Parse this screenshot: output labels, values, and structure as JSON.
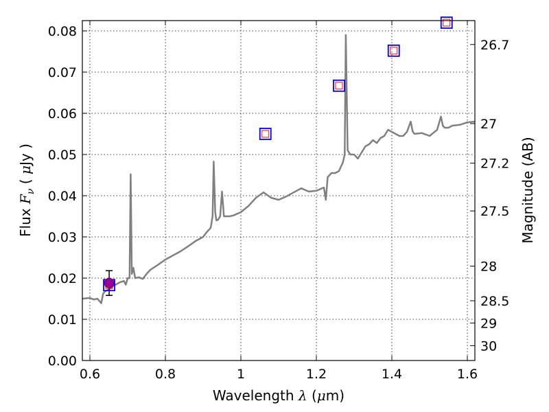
{
  "chart_data": {
    "type": "line",
    "xlabel": {
      "prefix": "Wavelength",
      "symbol": "λ",
      "unit_open": " (",
      "unit_mu": "μ",
      "unit_rest": "m)"
    },
    "ylabel": {
      "prefix": "Flux",
      "symbol": "F",
      "subscript": "ν",
      "unit_open": " ( ",
      "unit_mu": "μ",
      "unit_rest": "Jy )"
    },
    "ylabel_right": "Magnitude (AB)",
    "xlim": [
      0.58,
      1.62
    ],
    "ylim": [
      0.0,
      0.0825
    ],
    "grid": true,
    "x_ticks": [
      {
        "value": 0.6,
        "label": "0.6"
      },
      {
        "value": 0.8,
        "label": "0.8"
      },
      {
        "value": 1.0,
        "label": "1"
      },
      {
        "value": 1.2,
        "label": "1.2"
      },
      {
        "value": 1.4,
        "label": "1.4"
      },
      {
        "value": 1.6,
        "label": "1.6"
      }
    ],
    "y_ticks": [
      {
        "value": 0.0,
        "label": "0.00"
      },
      {
        "value": 0.01,
        "label": "0.01"
      },
      {
        "value": 0.02,
        "label": "0.02"
      },
      {
        "value": 0.03,
        "label": "0.03"
      },
      {
        "value": 0.04,
        "label": "0.04"
      },
      {
        "value": 0.05,
        "label": "0.05"
      },
      {
        "value": 0.06,
        "label": "0.06"
      },
      {
        "value": 0.07,
        "label": "0.07"
      },
      {
        "value": 0.08,
        "label": "0.08"
      }
    ],
    "right_ticks": [
      {
        "flux": 0.0767,
        "label": "26.7"
      },
      {
        "flux": 0.0575,
        "label": "27"
      },
      {
        "flux": 0.0479,
        "label": "27.2"
      },
      {
        "flux": 0.0363,
        "label": "27.5"
      },
      {
        "flux": 0.0229,
        "label": "28"
      },
      {
        "flux": 0.0145,
        "label": "28.5"
      },
      {
        "flux": 0.0091,
        "label": "29"
      },
      {
        "flux": 0.0036,
        "label": "30"
      }
    ],
    "colors": {
      "spectrum": "#808080",
      "model_square_outer": "#0000ff",
      "model_square_inner": "#ff0000",
      "observed_point": "#990099",
      "errorbar": "#000000"
    },
    "spectrum": [
      [
        0.58,
        0.015
      ],
      [
        0.6,
        0.0152
      ],
      [
        0.61,
        0.0148
      ],
      [
        0.62,
        0.015
      ],
      [
        0.63,
        0.0139
      ],
      [
        0.635,
        0.0162
      ],
      [
        0.64,
        0.0168
      ],
      [
        0.65,
        0.0172
      ],
      [
        0.66,
        0.018
      ],
      [
        0.67,
        0.0185
      ],
      [
        0.68,
        0.019
      ],
      [
        0.69,
        0.0193
      ],
      [
        0.695,
        0.0184
      ],
      [
        0.7,
        0.02
      ],
      [
        0.705,
        0.02
      ],
      [
        0.708,
        0.0452
      ],
      [
        0.711,
        0.021
      ],
      [
        0.715,
        0.0225
      ],
      [
        0.72,
        0.02
      ],
      [
        0.73,
        0.0202
      ],
      [
        0.74,
        0.0198
      ],
      [
        0.75,
        0.021
      ],
      [
        0.76,
        0.022
      ],
      [
        0.78,
        0.0232
      ],
      [
        0.8,
        0.0245
      ],
      [
        0.82,
        0.0255
      ],
      [
        0.84,
        0.0265
      ],
      [
        0.86,
        0.0277
      ],
      [
        0.88,
        0.029
      ],
      [
        0.9,
        0.03
      ],
      [
        0.91,
        0.0312
      ],
      [
        0.92,
        0.0322
      ],
      [
        0.925,
        0.035
      ],
      [
        0.928,
        0.0483
      ],
      [
        0.932,
        0.036
      ],
      [
        0.935,
        0.034
      ],
      [
        0.94,
        0.0342
      ],
      [
        0.945,
        0.035
      ],
      [
        0.95,
        0.041
      ],
      [
        0.955,
        0.035
      ],
      [
        0.96,
        0.035
      ],
      [
        0.97,
        0.035
      ],
      [
        0.98,
        0.0352
      ],
      [
        1.0,
        0.036
      ],
      [
        1.02,
        0.0375
      ],
      [
        1.04,
        0.0395
      ],
      [
        1.06,
        0.0408
      ],
      [
        1.08,
        0.0395
      ],
      [
        1.1,
        0.039
      ],
      [
        1.12,
        0.0398
      ],
      [
        1.14,
        0.0408
      ],
      [
        1.16,
        0.0418
      ],
      [
        1.18,
        0.041
      ],
      [
        1.2,
        0.0412
      ],
      [
        1.22,
        0.042
      ],
      [
        1.225,
        0.039
      ],
      [
        1.23,
        0.0445
      ],
      [
        1.24,
        0.0455
      ],
      [
        1.25,
        0.0455
      ],
      [
        1.26,
        0.046
      ],
      [
        1.27,
        0.048
      ],
      [
        1.275,
        0.05
      ],
      [
        1.278,
        0.079
      ],
      [
        1.283,
        0.051
      ],
      [
        1.29,
        0.05
      ],
      [
        1.3,
        0.05
      ],
      [
        1.31,
        0.049
      ],
      [
        1.32,
        0.0505
      ],
      [
        1.33,
        0.052
      ],
      [
        1.34,
        0.0525
      ],
      [
        1.35,
        0.0535
      ],
      [
        1.36,
        0.0528
      ],
      [
        1.37,
        0.054
      ],
      [
        1.38,
        0.0545
      ],
      [
        1.39,
        0.056
      ],
      [
        1.4,
        0.0555
      ],
      [
        1.41,
        0.055
      ],
      [
        1.42,
        0.0545
      ],
      [
        1.43,
        0.0545
      ],
      [
        1.44,
        0.0555
      ],
      [
        1.45,
        0.058
      ],
      [
        1.455,
        0.0556
      ],
      [
        1.46,
        0.055
      ],
      [
        1.48,
        0.0552
      ],
      [
        1.5,
        0.0545
      ],
      [
        1.52,
        0.056
      ],
      [
        1.53,
        0.0592
      ],
      [
        1.535,
        0.057
      ],
      [
        1.54,
        0.0565
      ],
      [
        1.55,
        0.0565
      ],
      [
        1.56,
        0.057
      ],
      [
        1.58,
        0.0572
      ],
      [
        1.6,
        0.0578
      ],
      [
        1.62,
        0.058
      ]
    ],
    "model_points": [
      {
        "x": 0.651,
        "y": 0.0183
      },
      {
        "x": 1.065,
        "y": 0.055
      },
      {
        "x": 1.26,
        "y": 0.0667
      },
      {
        "x": 1.405,
        "y": 0.0752
      },
      {
        "x": 1.545,
        "y": 0.082
      }
    ],
    "observed_points": [
      {
        "x": 0.651,
        "y": 0.0188,
        "yerr": 0.003
      }
    ]
  }
}
